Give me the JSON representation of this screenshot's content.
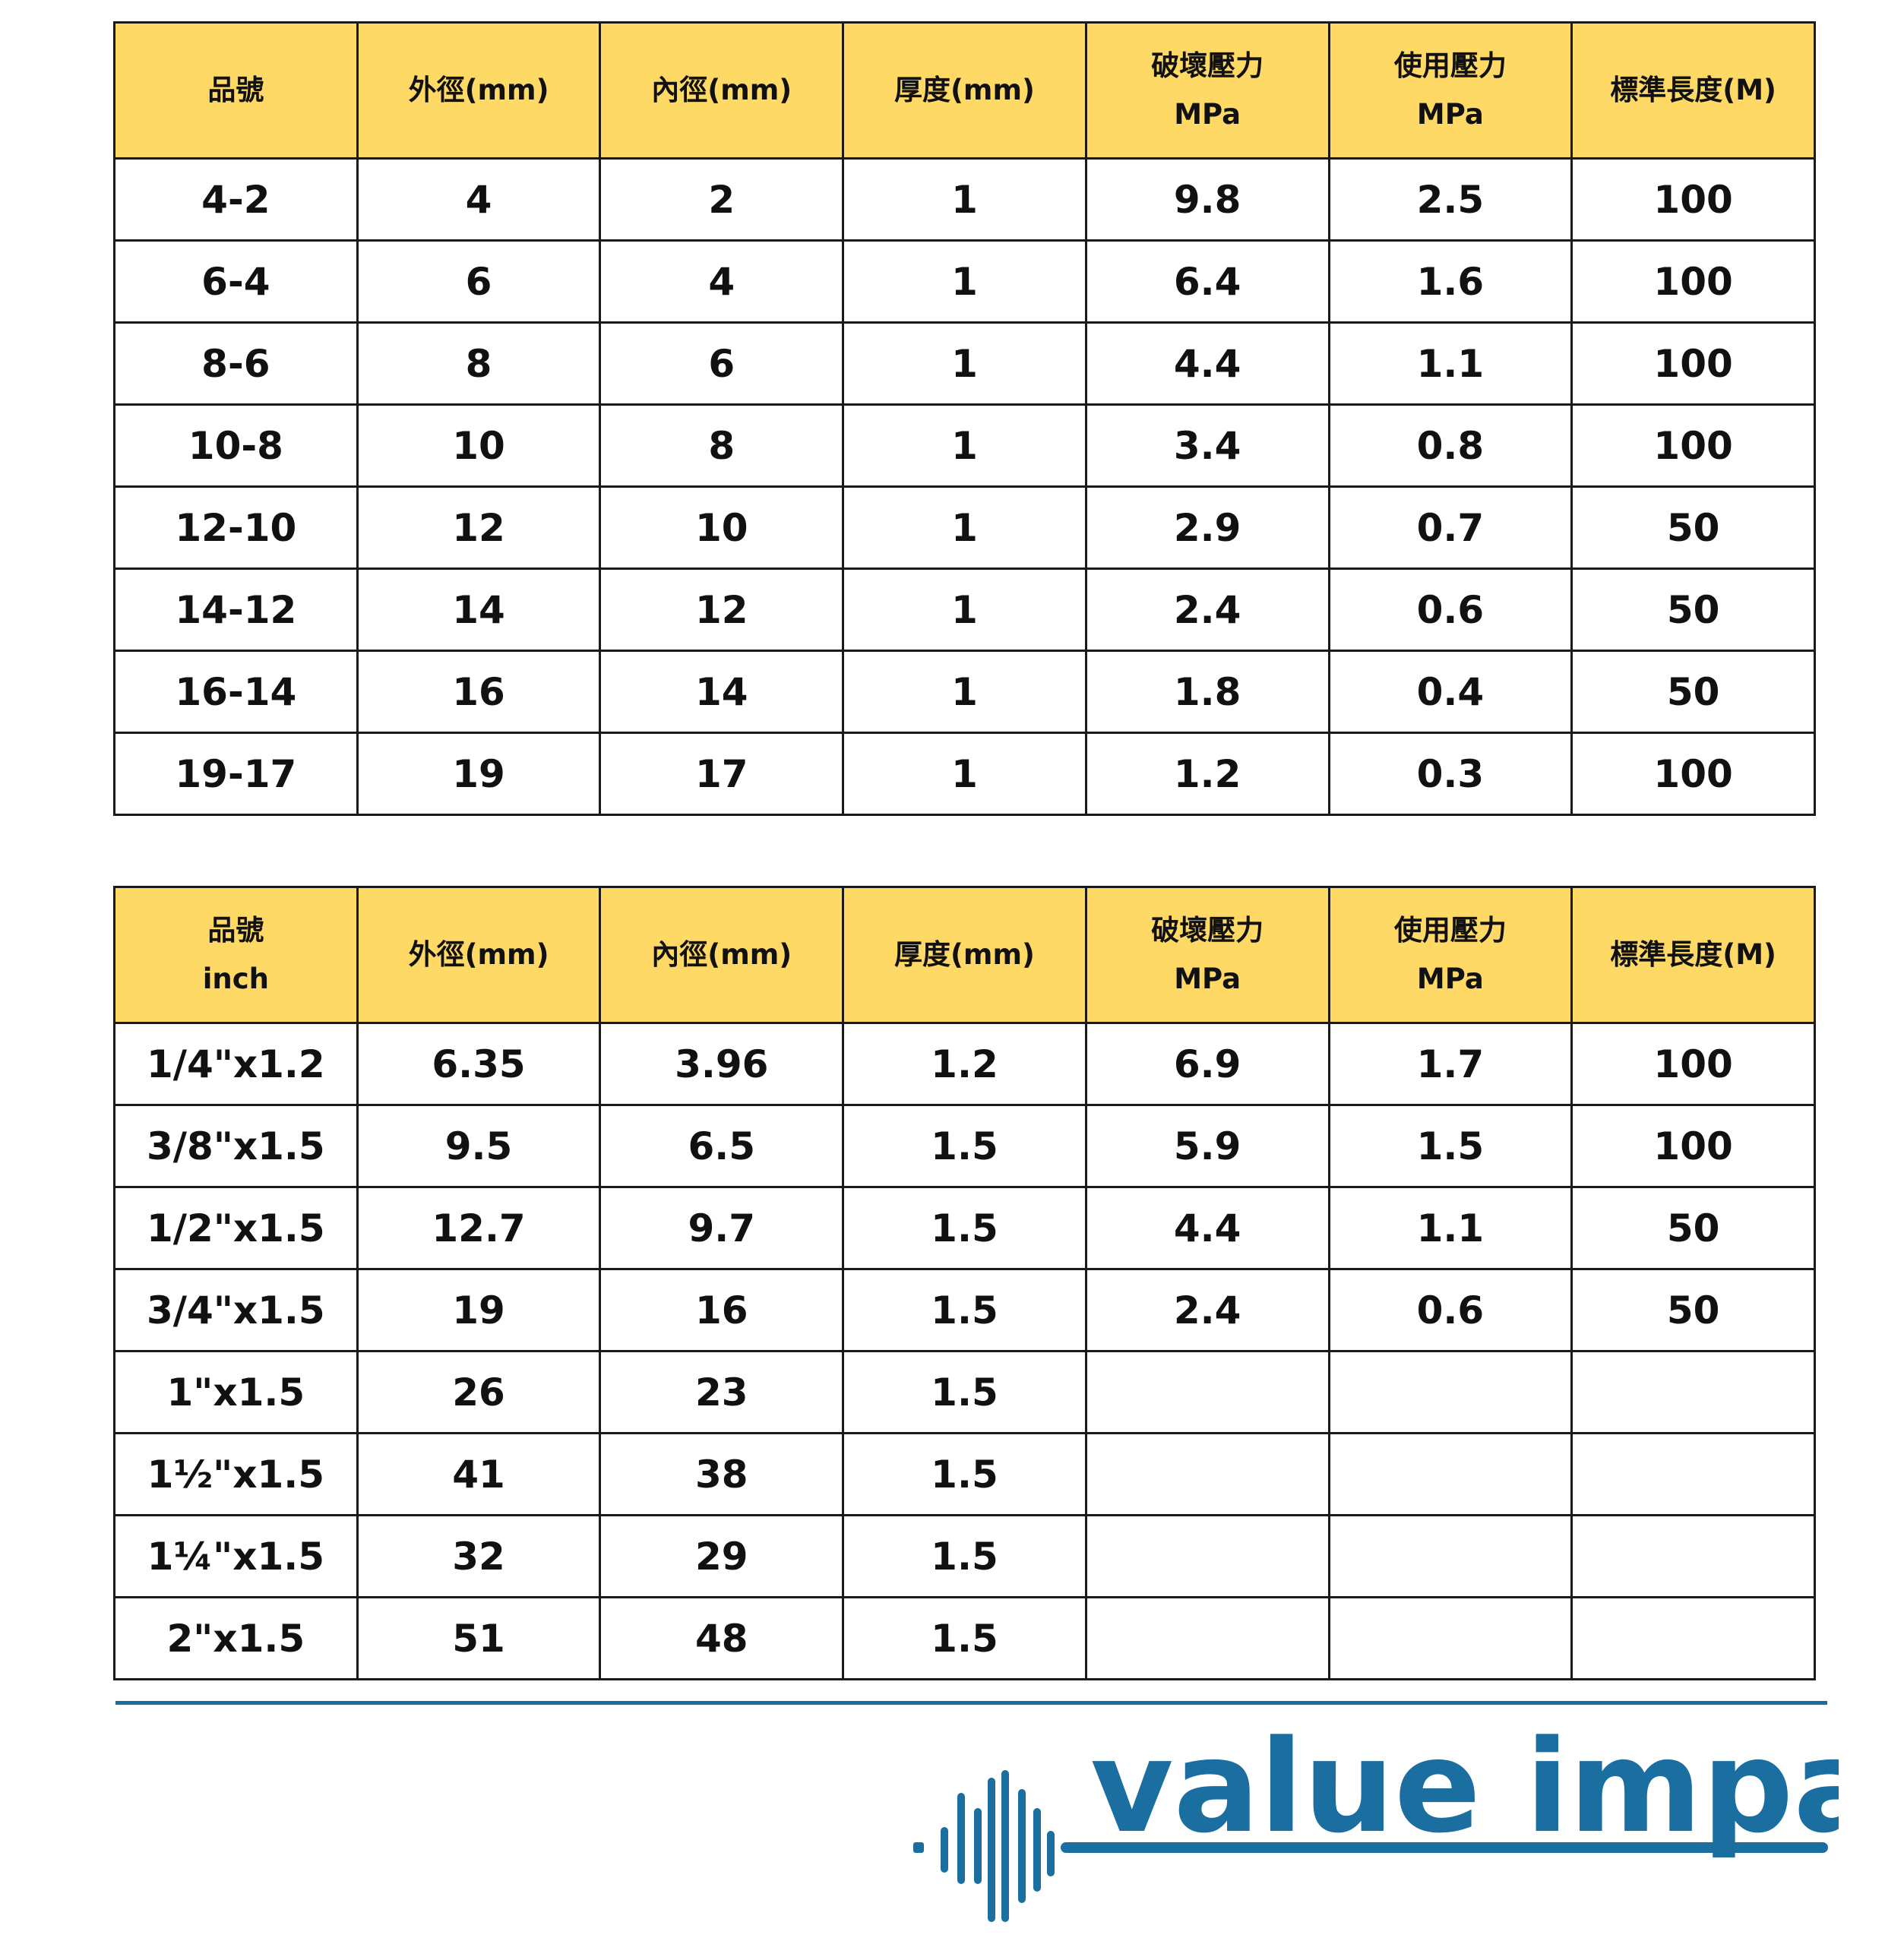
{
  "table_mm": {
    "headers": [
      {
        "line1": "品號",
        "line2": ""
      },
      {
        "line1": "外徑(mm)",
        "line2": ""
      },
      {
        "line1": "內徑(mm)",
        "line2": ""
      },
      {
        "line1": "厚度(mm)",
        "line2": ""
      },
      {
        "line1": "破壞壓力",
        "line2": "MPa"
      },
      {
        "line1": "使用壓力",
        "line2": "MPa"
      },
      {
        "line1": "標準長度(M)",
        "line2": ""
      }
    ],
    "rows": [
      [
        "4-2",
        "4",
        "2",
        "1",
        "9.8",
        "2.5",
        "100"
      ],
      [
        "6-4",
        "6",
        "4",
        "1",
        "6.4",
        "1.6",
        "100"
      ],
      [
        "8-6",
        "8",
        "6",
        "1",
        "4.4",
        "1.1",
        "100"
      ],
      [
        "10-8",
        "10",
        "8",
        "1",
        "3.4",
        "0.8",
        "100"
      ],
      [
        "12-10",
        "12",
        "10",
        "1",
        "2.9",
        "0.7",
        "50"
      ],
      [
        "14-12",
        "14",
        "12",
        "1",
        "2.4",
        "0.6",
        "50"
      ],
      [
        "16-14",
        "16",
        "14",
        "1",
        "1.8",
        "0.4",
        "50"
      ],
      [
        "19-17",
        "19",
        "17",
        "1",
        "1.2",
        "0.3",
        "100"
      ]
    ]
  },
  "table_inch": {
    "headers": [
      {
        "line1": "品號",
        "line2": "inch"
      },
      {
        "line1": "外徑(mm)",
        "line2": ""
      },
      {
        "line1": "內徑(mm)",
        "line2": ""
      },
      {
        "line1": "厚度(mm)",
        "line2": ""
      },
      {
        "line1": "破壞壓力",
        "line2": "MPa"
      },
      {
        "line1": "使用壓力",
        "line2": "MPa"
      },
      {
        "line1": "標準長度(M)",
        "line2": ""
      }
    ],
    "rows": [
      [
        "1/4\"x1.2",
        "6.35",
        "3.96",
        "1.2",
        "6.9",
        "1.7",
        "100"
      ],
      [
        "3/8\"x1.5",
        "9.5",
        "6.5",
        "1.5",
        "5.9",
        "1.5",
        "100"
      ],
      [
        "1/2\"x1.5",
        "12.7",
        "9.7",
        "1.5",
        "4.4",
        "1.1",
        "50"
      ],
      [
        "3/4\"x1.5",
        "19",
        "16",
        "1.5",
        "2.4",
        "0.6",
        "50"
      ],
      [
        "1\"x1.5",
        "26",
        "23",
        "1.5",
        "",
        "",
        ""
      ],
      [
        "1½\"x1.5",
        "41",
        "38",
        "1.5",
        "",
        "",
        ""
      ],
      [
        "1¼\"x1.5",
        "32",
        "29",
        "1.5",
        "",
        "",
        ""
      ],
      [
        "2\"x1.5",
        "51",
        "48",
        "1.5",
        "",
        "",
        ""
      ]
    ]
  },
  "brand": {
    "name": "value impact",
    "color": "#1a6fa0"
  },
  "colors": {
    "header_fill": "#ffd966",
    "border": "#1a1a1a"
  }
}
